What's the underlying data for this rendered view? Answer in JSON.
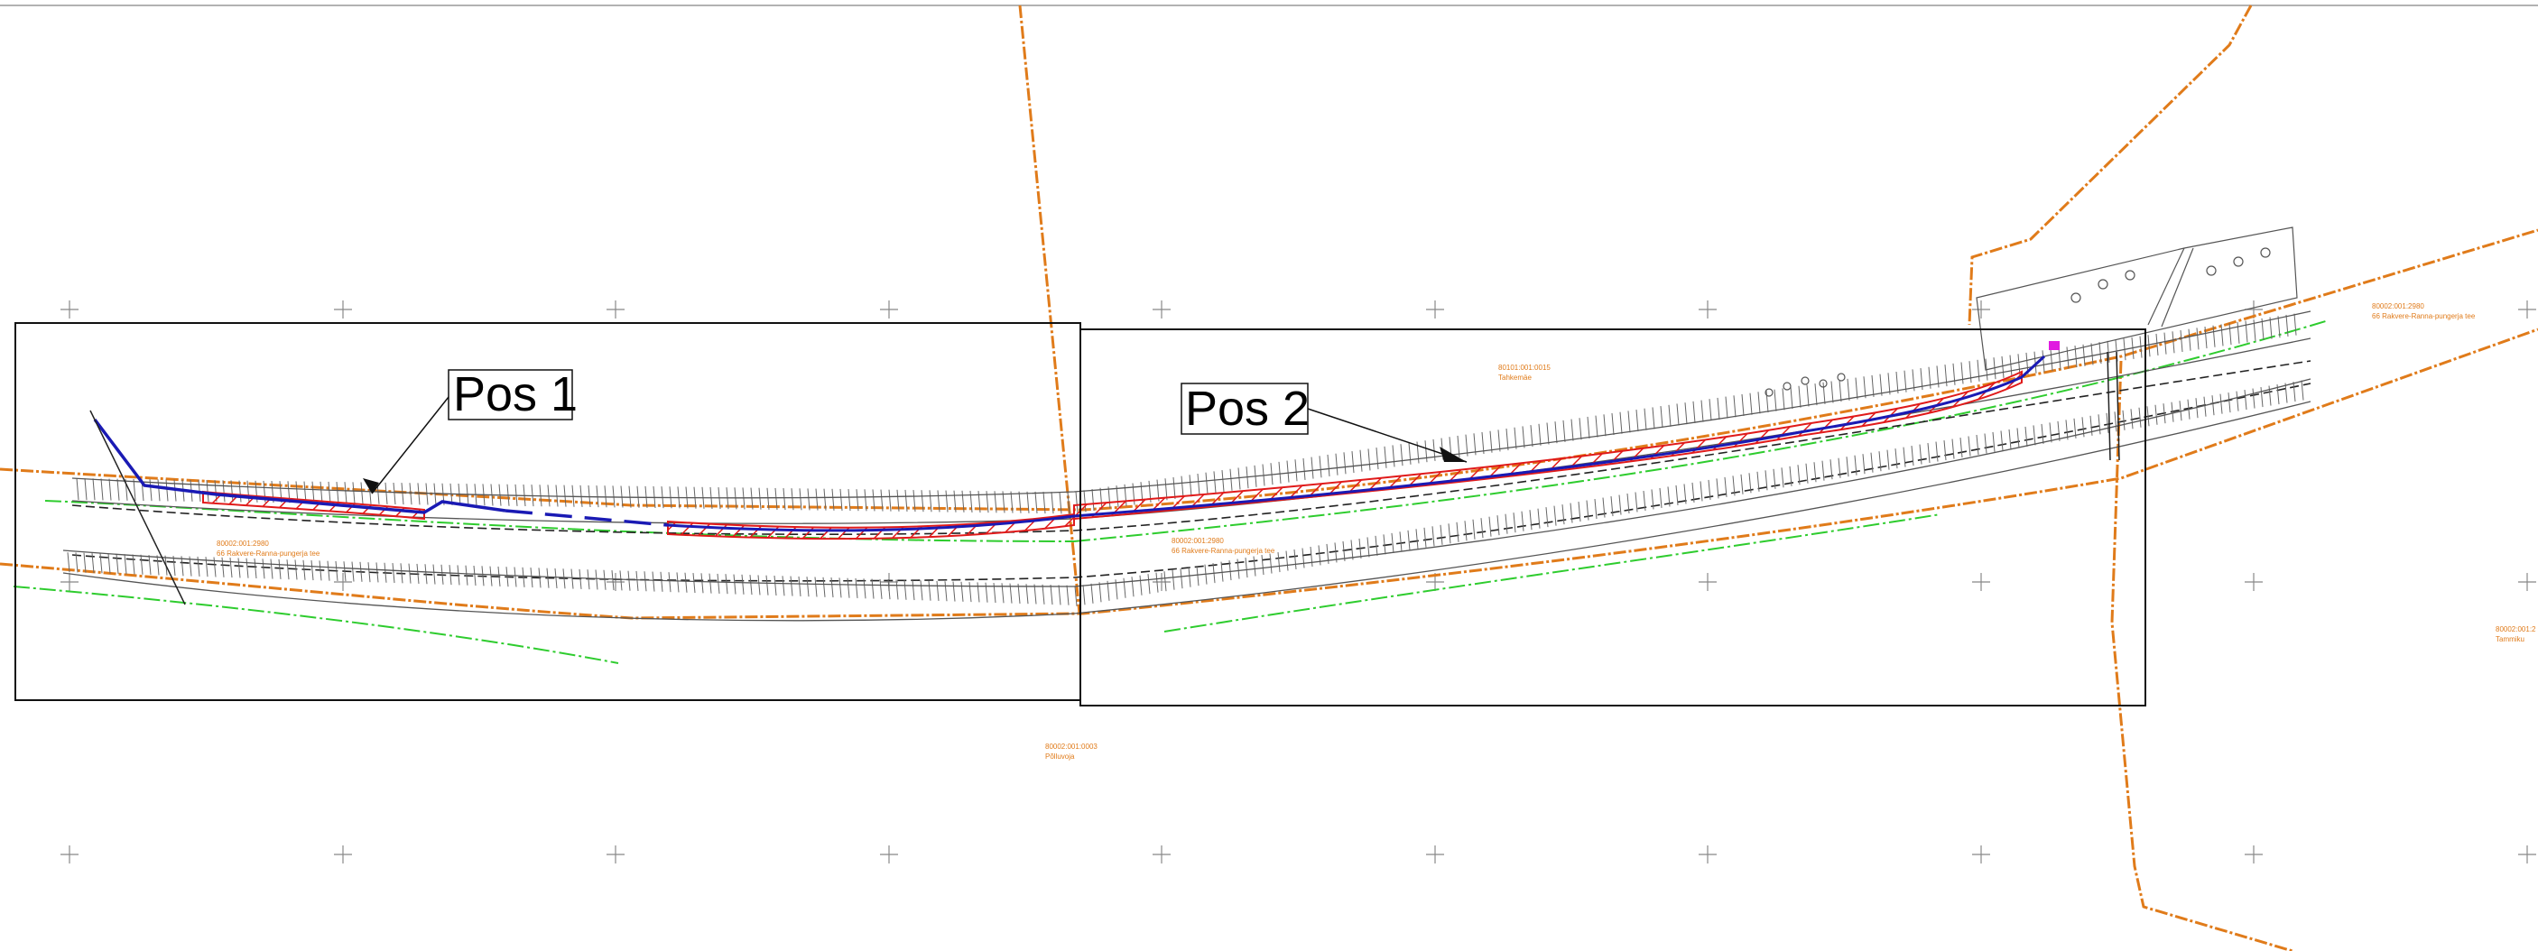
{
  "drawing": {
    "title": "",
    "callouts": [
      {
        "id": "pos1",
        "label": "Pos 1"
      },
      {
        "id": "pos2",
        "label": "Pos 2"
      }
    ],
    "parcels": [
      {
        "id": "p1",
        "code": "80002:001:2980",
        "name": "66 Rakvere-Ranna-pungerja tee"
      },
      {
        "id": "p2",
        "code": "80002:001:2980",
        "name": "66 Rakvere-Ranna-pungerja tee"
      },
      {
        "id": "p3",
        "code": "80101:001:0015",
        "name": "Tahkemäe"
      },
      {
        "id": "p4",
        "code": "80002:001:0003",
        "name": "Põlluvoja"
      },
      {
        "id": "p5",
        "code": "80002:001:2980",
        "name": "66 Rakvere-Ranna-pungerja tee"
      },
      {
        "id": "p6",
        "code": "80002:001:2",
        "name": "Tammiku"
      }
    ],
    "colors": {
      "boundary": "#e07b1a",
      "line_drain": "#1a1ab4",
      "hatch": "#e01a1a",
      "green_line": "#2ecc2e",
      "linework": "#555555",
      "marker": "#e01ae0"
    }
  }
}
